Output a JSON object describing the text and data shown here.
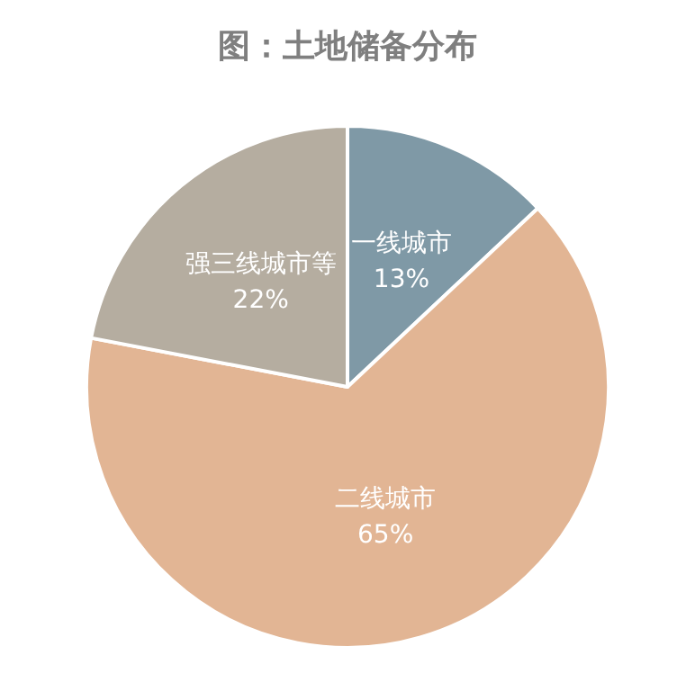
{
  "chart_data": {
    "type": "pie",
    "title": "图：土地储备分布",
    "categories": [
      "一线城市",
      "二线城市",
      "强三线城市等"
    ],
    "values": [
      13,
      65,
      22
    ],
    "colors": [
      "#7f99a6",
      "#e2b594",
      "#b5ada0"
    ],
    "value_labels": [
      "13%",
      "65%",
      "22%"
    ],
    "legend": false
  }
}
